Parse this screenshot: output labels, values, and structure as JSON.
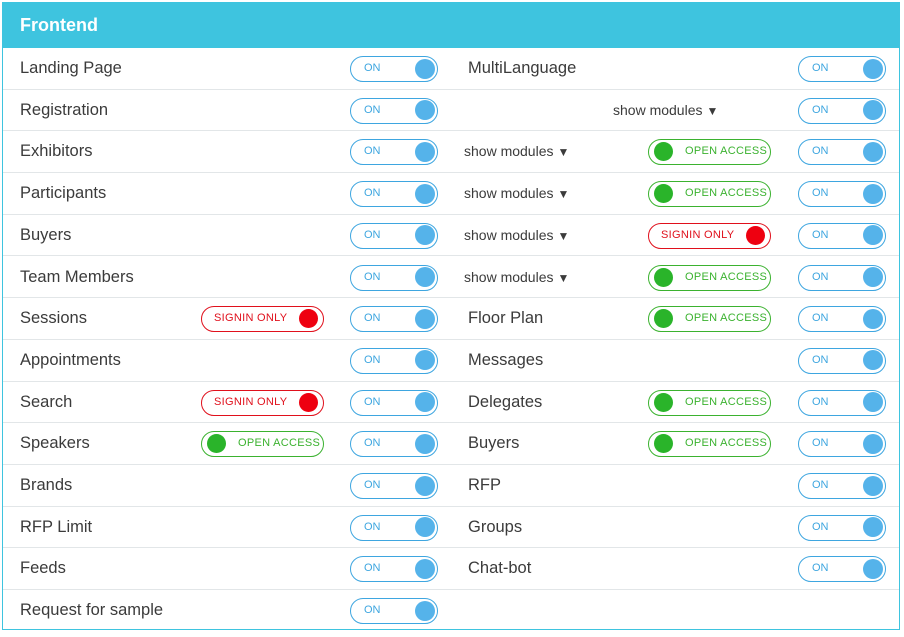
{
  "section_title": "Frontend",
  "toggle_on": "ON",
  "open_access": "OPEN ACCESS",
  "signin_only": "SIGNIN ONLY",
  "show_modules": "show modules",
  "arrow": "▼",
  "colors": {
    "header": "#3ec4df",
    "toggle": "#3ea6e0",
    "open_access": "#2ab42a",
    "signin_only": "#e0101c"
  },
  "rows": [
    {
      "left": {
        "label": "Landing Page"
      },
      "right": {
        "label": "MultiLanguage"
      }
    },
    {
      "left": {
        "label": "Registration"
      },
      "right": {
        "label": "",
        "show_modules": true
      }
    },
    {
      "left": {
        "label": "Exhibitors"
      },
      "right": {
        "label": "",
        "show_modules": true,
        "access": "open"
      }
    },
    {
      "left": {
        "label": "Participants"
      },
      "right": {
        "label": "",
        "show_modules": true,
        "access": "open"
      }
    },
    {
      "left": {
        "label": "Buyers"
      },
      "right": {
        "label": "",
        "show_modules": true,
        "access": "signin"
      }
    },
    {
      "left": {
        "label": "Team Members"
      },
      "right": {
        "label": "",
        "show_modules": true,
        "access": "open"
      }
    },
    {
      "left": {
        "label": "Sessions",
        "access": "signin"
      },
      "right": {
        "label": "Floor Plan",
        "access": "open"
      }
    },
    {
      "left": {
        "label": "Appointments"
      },
      "right": {
        "label": "Messages"
      }
    },
    {
      "left": {
        "label": "Search",
        "access": "signin"
      },
      "right": {
        "label": "Delegates",
        "access": "open"
      }
    },
    {
      "left": {
        "label": "Speakers",
        "access": "open"
      },
      "right": {
        "label": "Buyers",
        "access": "open"
      }
    },
    {
      "left": {
        "label": "Brands"
      },
      "right": {
        "label": "RFP"
      }
    },
    {
      "left": {
        "label": "RFP Limit"
      },
      "right": {
        "label": "Groups"
      }
    },
    {
      "left": {
        "label": "Feeds"
      },
      "right": {
        "label": "Chat-bot"
      }
    },
    {
      "left": {
        "label": "Request for sample"
      },
      "right": null
    }
  ]
}
